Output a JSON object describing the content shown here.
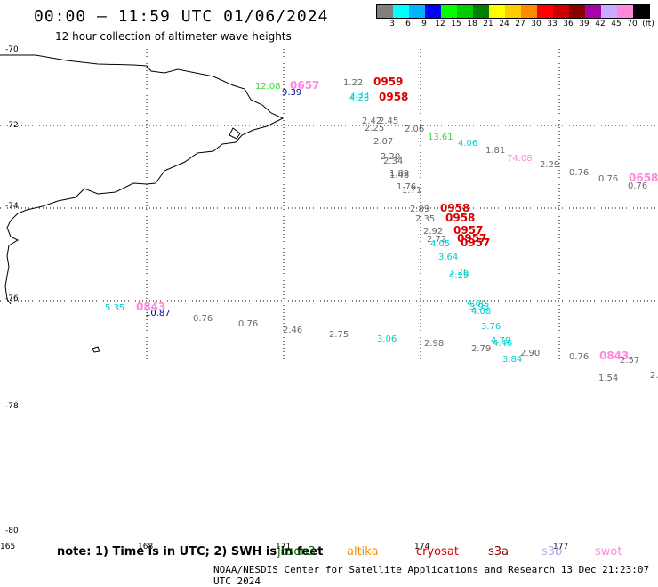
{
  "header": {
    "title": "00:00 – 11:59 UTC 01/06/2024",
    "subtitle": "12 hour collection of altimeter wave heights"
  },
  "colorbar": {
    "labels": [
      "3",
      "6",
      "9",
      "12",
      "15",
      "18",
      "21",
      "24",
      "27",
      "30",
      "33",
      "36",
      "39",
      "42",
      "45",
      "70",
      "(ft)"
    ],
    "colors": [
      "#808080",
      "#00ffff",
      "#00b4ff",
      "#0000ff",
      "#00ff00",
      "#00cc00",
      "#008000",
      "#ffff00",
      "#ffcc00",
      "#ff8c00",
      "#ff0000",
      "#cc0000",
      "#880000",
      "#aa00aa",
      "#ccaaff",
      "#ff88dd",
      "#000000"
    ]
  },
  "axes": {
    "lat_labels": [
      "-70",
      "-72",
      "-74",
      "-76",
      "-78",
      "-80"
    ],
    "lon_labels": [
      "165",
      "168",
      "171",
      "174",
      "177"
    ]
  },
  "wave_labels": [
    {
      "text": "12.08",
      "color": "#33dd33"
    },
    {
      "text": "0657",
      "color": "#ff88dd"
    },
    {
      "text": "9.39",
      "color": "#000099"
    },
    {
      "text": "1.22",
      "color": "#666666"
    },
    {
      "text": "0959",
      "color": "#dd0000"
    },
    {
      "text": "3.33",
      "color": "#00cccc"
    },
    {
      "text": "4.28",
      "color": "#00cccc"
    },
    {
      "text": "0958",
      "color": "#dd0000"
    },
    {
      "text": "2.42",
      "color": "#666666"
    },
    {
      "text": "2.45",
      "color": "#666666"
    },
    {
      "text": "2.25",
      "color": "#666666"
    },
    {
      "text": "2.06",
      "color": "#666666"
    },
    {
      "text": "13.61",
      "color": "#33dd33"
    },
    {
      "text": "4.06",
      "color": "#00cccc"
    },
    {
      "text": "2.07",
      "color": "#666666"
    },
    {
      "text": "1.81",
      "color": "#666666"
    },
    {
      "text": "74.08",
      "color": "#ff88dd"
    },
    {
      "text": "2.20",
      "color": "#666666"
    },
    {
      "text": "2.34",
      "color": "#666666"
    },
    {
      "text": "2.29",
      "color": "#666666"
    },
    {
      "text": "0.76",
      "color": "#666666"
    },
    {
      "text": "1.89",
      "color": "#666666"
    },
    {
      "text": "1.48",
      "color": "#666666"
    },
    {
      "text": "0.76",
      "color": "#666666"
    },
    {
      "text": "0658",
      "color": "#ff88dd"
    },
    {
      "text": "0.76",
      "color": "#666666"
    },
    {
      "text": "1.76",
      "color": "#666666"
    },
    {
      "text": "1.71",
      "color": "#666666"
    },
    {
      "text": "2.89",
      "color": "#666666"
    },
    {
      "text": "0958",
      "color": "#dd0000"
    },
    {
      "text": "2.35",
      "color": "#666666"
    },
    {
      "text": "0958",
      "color": "#dd0000"
    },
    {
      "text": "2.92",
      "color": "#666666"
    },
    {
      "text": "0957",
      "color": "#dd0000"
    },
    {
      "text": "2.72",
      "color": "#666666"
    },
    {
      "text": "0957",
      "color": "#dd0000"
    },
    {
      "text": "4.05",
      "color": "#00cccc"
    },
    {
      "text": "0957",
      "color": "#dd0000"
    },
    {
      "text": "3.64",
      "color": "#00cccc"
    },
    {
      "text": "3.26",
      "color": "#00cccc"
    },
    {
      "text": "4.29",
      "color": "#00cccc"
    },
    {
      "text": "5.35",
      "color": "#00cccc"
    },
    {
      "text": "0843",
      "color": "#ff88dd"
    },
    {
      "text": "10.87",
      "color": "#000099"
    },
    {
      "text": "4.80",
      "color": "#00cccc"
    },
    {
      "text": "3.98",
      "color": "#00cccc"
    },
    {
      "text": "4.08",
      "color": "#00cccc"
    },
    {
      "text": "0.76",
      "color": "#666666"
    },
    {
      "text": "0.76",
      "color": "#666666"
    },
    {
      "text": "3.76",
      "color": "#00cccc"
    },
    {
      "text": "2.46",
      "color": "#666666"
    },
    {
      "text": "2.75",
      "color": "#666666"
    },
    {
      "text": "3.06",
      "color": "#00cccc"
    },
    {
      "text": "2.98",
      "color": "#666666"
    },
    {
      "text": "4.79",
      "color": "#00cccc"
    },
    {
      "text": "4.46",
      "color": "#00cccc"
    },
    {
      "text": "2.79",
      "color": "#666666"
    },
    {
      "text": "2.90",
      "color": "#666666"
    },
    {
      "text": "3.84",
      "color": "#00cccc"
    },
    {
      "text": "0.76",
      "color": "#666666"
    },
    {
      "text": "0843",
      "color": "#ff88dd"
    },
    {
      "text": "2.57",
      "color": "#666666"
    },
    {
      "text": "1.54",
      "color": "#666666"
    },
    {
      "text": "2.",
      "color": "#666666"
    }
  ],
  "footer": {
    "note": "note: 1) Time is in UTC; 2) SWH is in feet",
    "satellites": [
      {
        "name": "jason3",
        "color": "#006600"
      },
      {
        "name": "altika",
        "color": "#ff8c00"
      },
      {
        "name": "cryosat",
        "color": "#dd0000"
      },
      {
        "name": "s3a",
        "color": "#880000"
      },
      {
        "name": "s3b",
        "color": "#bbaaee"
      },
      {
        "name": "swot",
        "color": "#ff88dd"
      }
    ],
    "credit": "NOAA/NESDIS Center for Satellite Applications and Research    13 Dec 21:23:07 UTC 2024"
  }
}
